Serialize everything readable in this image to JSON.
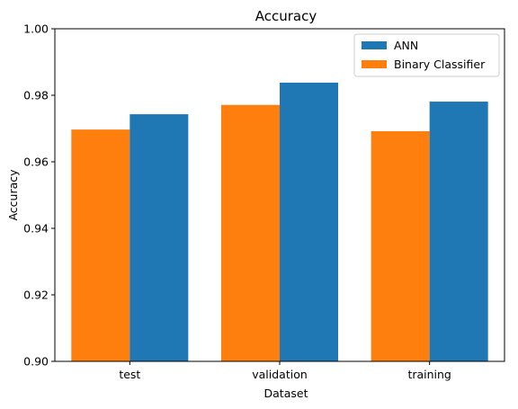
{
  "chart_data": {
    "type": "bar",
    "title": "Accuracy",
    "xlabel": "Dataset",
    "ylabel": "Accuracy",
    "categories": [
      "test",
      "validation",
      "training"
    ],
    "ylim": [
      0.9,
      1.0
    ],
    "yticks": [
      "0.90",
      "0.92",
      "0.94",
      "0.96",
      "0.98",
      "1.00"
    ],
    "series": [
      {
        "name": "Binary Classifier",
        "color": "#ff7f0e",
        "values": [
          0.9697,
          0.9771,
          0.9692
        ]
      },
      {
        "name": "ANN",
        "color": "#1f77b4",
        "values": [
          0.9743,
          0.9838,
          0.9781
        ]
      }
    ],
    "legend": {
      "position": "top-right",
      "order": [
        "ANN",
        "Binary Classifier"
      ]
    },
    "grid": false
  }
}
